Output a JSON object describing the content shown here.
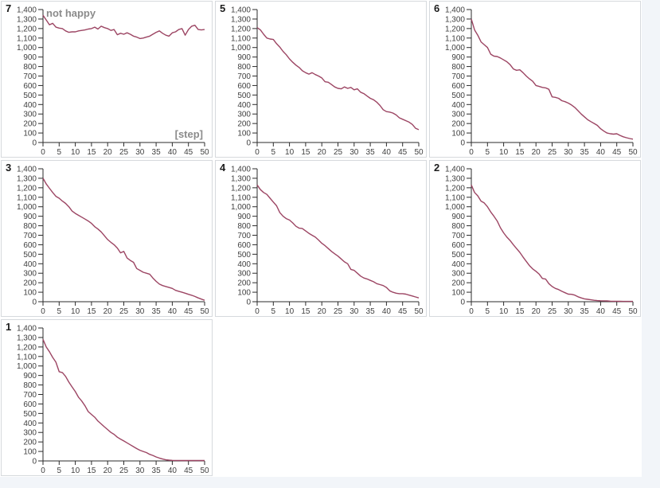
{
  "page": {
    "background_color": "#f2f5f9",
    "board_color": "#ffffff",
    "panel_border_color": "#d6d9dd"
  },
  "chart_data": {
    "type": "line",
    "layout": "3-column grid, 7 panels, legend off, grid off",
    "line_color": "#9c4563",
    "axis_color": "#2b2b2b",
    "tick_label_color": "#3f3f3f",
    "annotation_color": "#8b8b8b",
    "xlim": [
      0,
      50
    ],
    "ylim": [
      0,
      1400
    ],
    "x_ticks": [
      0,
      5,
      10,
      15,
      20,
      25,
      30,
      35,
      40,
      45,
      50
    ],
    "y_ticks": [
      0,
      100,
      200,
      300,
      400,
      500,
      600,
      700,
      800,
      900,
      1000,
      1100,
      1200,
      1300,
      1400
    ],
    "charts": [
      {
        "index_label": "7",
        "title": "not happy",
        "xlabel": "[step]",
        "x_step": 1,
        "values": [
          1340,
          1290,
          1240,
          1255,
          1215,
          1205,
          1200,
          1175,
          1160,
          1165,
          1165,
          1175,
          1180,
          1185,
          1195,
          1200,
          1215,
          1195,
          1225,
          1210,
          1200,
          1180,
          1190,
          1135,
          1150,
          1140,
          1155,
          1140,
          1120,
          1110,
          1095,
          1100,
          1110,
          1120,
          1140,
          1160,
          1175,
          1150,
          1130,
          1120,
          1155,
          1165,
          1190,
          1200,
          1130,
          1190,
          1225,
          1235,
          1190,
          1185,
          1190
        ]
      },
      {
        "index_label": "5",
        "title": "",
        "xlabel": "",
        "x_step": 1,
        "values": [
          1210,
          1185,
          1140,
          1100,
          1090,
          1085,
          1040,
          1005,
          960,
          925,
          880,
          845,
          815,
          790,
          755,
          735,
          720,
          735,
          715,
          700,
          680,
          640,
          635,
          610,
          585,
          570,
          565,
          585,
          570,
          580,
          555,
          565,
          530,
          515,
          490,
          465,
          450,
          425,
          390,
          345,
          325,
          320,
          310,
          290,
          260,
          245,
          230,
          215,
          190,
          150,
          135
        ]
      },
      {
        "index_label": "6",
        "title": "",
        "xlabel": "",
        "x_step": 1,
        "values": [
          1300,
          1185,
          1130,
          1060,
          1030,
          1000,
          930,
          910,
          905,
          890,
          870,
          850,
          820,
          775,
          760,
          765,
          735,
          700,
          670,
          645,
          600,
          590,
          580,
          575,
          560,
          480,
          475,
          465,
          440,
          430,
          415,
          395,
          370,
          335,
          300,
          270,
          240,
          220,
          200,
          180,
          145,
          120,
          100,
          92,
          88,
          92,
          75,
          60,
          50,
          42,
          35
        ]
      },
      {
        "index_label": "3",
        "title": "",
        "xlabel": "",
        "x_step": 1,
        "values": [
          1300,
          1240,
          1195,
          1150,
          1110,
          1090,
          1060,
          1035,
          1000,
          955,
          930,
          910,
          890,
          870,
          850,
          825,
          790,
          765,
          735,
          695,
          655,
          625,
          600,
          565,
          515,
          530,
          460,
          435,
          415,
          350,
          330,
          310,
          300,
          290,
          250,
          215,
          185,
          170,
          160,
          150,
          140,
          120,
          110,
          100,
          90,
          78,
          68,
          55,
          40,
          28,
          15
        ]
      },
      {
        "index_label": "4",
        "title": "",
        "xlabel": "",
        "x_step": 1,
        "values": [
          1230,
          1180,
          1150,
          1130,
          1090,
          1050,
          1010,
          940,
          900,
          875,
          860,
          830,
          795,
          775,
          770,
          745,
          720,
          700,
          680,
          650,
          615,
          590,
          560,
          530,
          505,
          480,
          450,
          420,
          400,
          340,
          330,
          300,
          270,
          250,
          240,
          225,
          210,
          190,
          180,
          170,
          150,
          115,
          100,
          90,
          85,
          85,
          80,
          70,
          60,
          50,
          40
        ]
      },
      {
        "index_label": "2",
        "title": "",
        "xlabel": "",
        "x_step": 1,
        "values": [
          1230,
          1150,
          1115,
          1060,
          1040,
          1000,
          945,
          900,
          850,
          780,
          725,
          680,
          645,
          600,
          560,
          520,
          470,
          425,
          380,
          345,
          320,
          290,
          245,
          238,
          190,
          160,
          140,
          128,
          110,
          95,
          80,
          78,
          70,
          52,
          40,
          30,
          25,
          20,
          15,
          12,
          10,
          9,
          8,
          6,
          5,
          5,
          4,
          3,
          3,
          3,
          3
        ]
      },
      {
        "index_label": "1",
        "title": "",
        "xlabel": "",
        "x_step": 1,
        "values": [
          1280,
          1200,
          1150,
          1090,
          1040,
          940,
          930,
          890,
          830,
          780,
          730,
          670,
          630,
          580,
          520,
          490,
          460,
          420,
          390,
          360,
          330,
          300,
          280,
          250,
          230,
          210,
          190,
          170,
          150,
          130,
          112,
          100,
          88,
          70,
          58,
          42,
          30,
          20,
          12,
          8,
          6,
          5,
          5,
          4,
          4,
          4,
          4,
          4,
          4,
          4,
          4
        ]
      }
    ]
  }
}
